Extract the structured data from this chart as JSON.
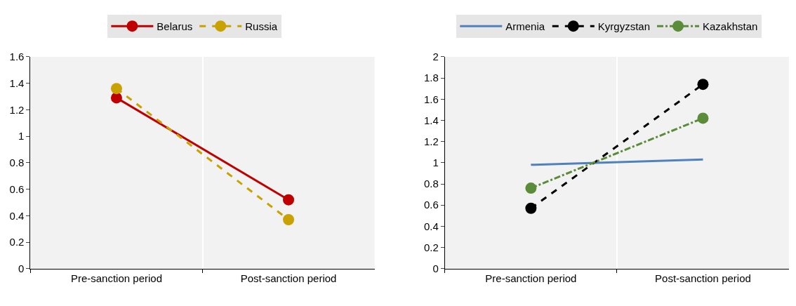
{
  "chart_data": [
    {
      "type": "line",
      "categories": [
        "Pre-sanction period",
        "Post-sanction period"
      ],
      "ylim": [
        0,
        1.6
      ],
      "yticks": [
        0,
        0.2,
        0.4,
        0.6,
        0.8,
        1,
        1.2,
        1.4,
        1.6
      ],
      "grid": "x",
      "legend": "top",
      "series": [
        {
          "name": "Belarus",
          "color": "#c00000",
          "values": [
            1.29,
            0.52
          ],
          "marker": "circle",
          "line_style": "solid"
        },
        {
          "name": "Russia",
          "color": "#c9a100",
          "values": [
            1.36,
            0.37
          ],
          "marker": "circle",
          "line_style": "dashed"
        }
      ]
    },
    {
      "type": "line",
      "categories": [
        "Pre-sanction period",
        "Post-sanction period"
      ],
      "ylim": [
        0,
        2
      ],
      "yticks": [
        0,
        0.2,
        0.4,
        0.6,
        0.8,
        1,
        1.2,
        1.4,
        1.6,
        1.8,
        2
      ],
      "grid": "x",
      "legend": "top",
      "series": [
        {
          "name": "Armenia",
          "color": "#4f81bd",
          "values": [
            0.98,
            1.03
          ],
          "marker": "none",
          "line_style": "solid"
        },
        {
          "name": "Kyrgyzstan",
          "color": "#000000",
          "values": [
            0.57,
            1.74
          ],
          "marker": "circle",
          "line_style": "dashed"
        },
        {
          "name": "Kazakhstan",
          "color": "#5b8c3a",
          "values": [
            0.76,
            1.42
          ],
          "marker": "circle",
          "line_style": "dashdot"
        }
      ]
    }
  ]
}
